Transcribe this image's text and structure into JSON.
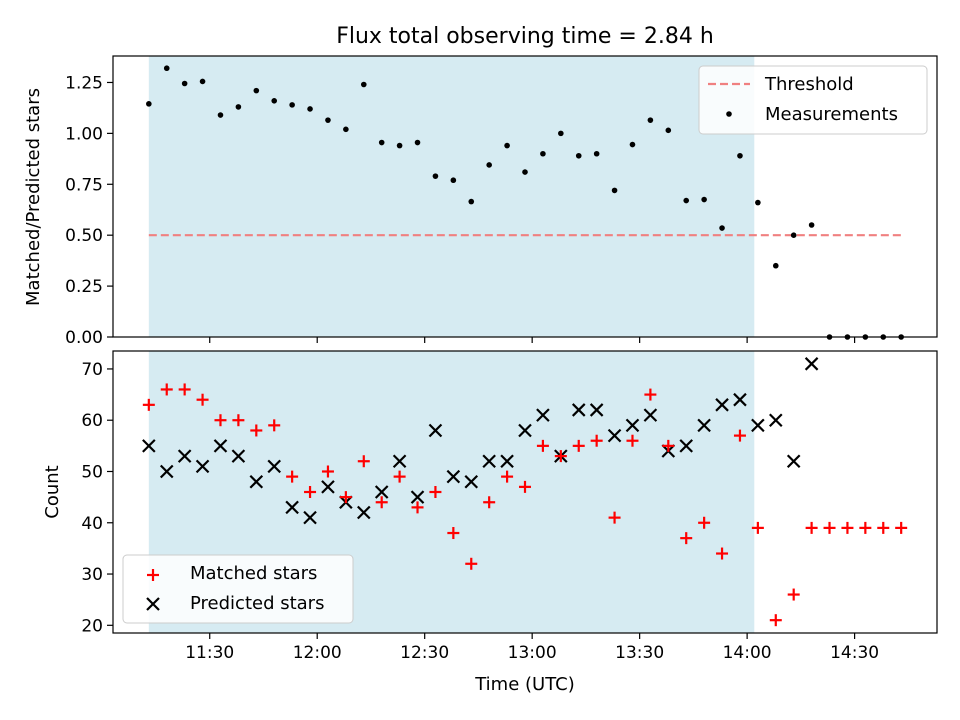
{
  "chart_data": [
    {
      "type": "scatter",
      "title": "Flux total observing time = 2.84 h",
      "xlabel": "",
      "ylabel": "Matched/Predicted stars",
      "ylim": [
        0,
        1.38
      ],
      "xlim_minutes": [
        663,
        893
      ],
      "yticks": [
        0,
        0.25,
        0.5,
        0.75,
        1.0,
        1.25
      ],
      "ytick_labels": [
        "0.00",
        "0.25",
        "0.50",
        "0.75",
        "1.00",
        "1.25"
      ],
      "shaded_span_minutes": [
        673,
        842
      ],
      "threshold": {
        "label": "Threshold",
        "value": 0.5,
        "x_range_minutes": [
          673,
          883
        ],
        "color": "#f08080"
      },
      "legend": [
        "Threshold",
        "Measurements"
      ],
      "legend_position": "upper right",
      "series": [
        {
          "name": "Measurements",
          "color": "#000000",
          "x_minutes": [
            673,
            678,
            683,
            688,
            693,
            698,
            703,
            708,
            713,
            718,
            723,
            728,
            733,
            738,
            743,
            748,
            753,
            758,
            763,
            768,
            773,
            778,
            783,
            788,
            793,
            798,
            803,
            808,
            813,
            818,
            823,
            828,
            833,
            838,
            843,
            848,
            853,
            858,
            863,
            868,
            873,
            878,
            883
          ],
          "values": [
            1.145,
            1.32,
            1.245,
            1.255,
            1.09,
            1.13,
            1.21,
            1.16,
            1.14,
            1.12,
            1.065,
            1.02,
            1.24,
            0.955,
            0.94,
            0.955,
            0.79,
            0.77,
            0.665,
            0.845,
            0.94,
            0.81,
            0.9,
            1.0,
            0.89,
            0.9,
            0.72,
            0.945,
            1.065,
            1.015,
            0.67,
            0.675,
            0.535,
            0.89,
            0.66,
            0.35,
            0.5,
            0.55,
            0.0,
            0.0,
            0.0,
            0.0,
            0.0
          ]
        }
      ]
    },
    {
      "type": "scatter",
      "title": "",
      "xlabel": "Time (UTC)",
      "ylabel": "Count",
      "ylim": [
        18.5,
        73.5
      ],
      "xlim_minutes": [
        663,
        893
      ],
      "yticks": [
        20,
        30,
        40,
        50,
        60,
        70
      ],
      "xtick_minutes": [
        690,
        720,
        750,
        780,
        810,
        840,
        870
      ],
      "xtick_labels": [
        "11:30",
        "12:00",
        "12:30",
        "13:00",
        "13:30",
        "14:00",
        "14:30"
      ],
      "shaded_span_minutes": [
        673,
        842
      ],
      "legend": [
        "Matched stars",
        "Predicted stars"
      ],
      "legend_position": "lower left",
      "series": [
        {
          "name": "Matched stars",
          "marker": "+",
          "color": "#ff0000",
          "x_minutes": [
            673,
            678,
            683,
            688,
            693,
            698,
            703,
            708,
            713,
            718,
            723,
            728,
            733,
            738,
            743,
            748,
            753,
            758,
            763,
            768,
            773,
            778,
            783,
            788,
            793,
            798,
            803,
            808,
            813,
            818,
            823,
            828,
            833,
            838,
            843,
            848,
            853,
            858,
            863,
            868,
            873,
            878,
            883
          ],
          "values": [
            63,
            66,
            66,
            64,
            60,
            60,
            58,
            59,
            49,
            46,
            50,
            45,
            52,
            44,
            49,
            43,
            46,
            38,
            32,
            44,
            49,
            47,
            55,
            53,
            55,
            56,
            41,
            56,
            65,
            55,
            37,
            40,
            34,
            57,
            39,
            21,
            26,
            39,
            39,
            39,
            39,
            39,
            39
          ]
        },
        {
          "name": "Predicted stars",
          "marker": "x",
          "color": "#000000",
          "x_minutes": [
            673,
            678,
            683,
            688,
            693,
            698,
            703,
            708,
            713,
            718,
            723,
            728,
            733,
            738,
            743,
            748,
            753,
            758,
            763,
            768,
            773,
            778,
            783,
            788,
            793,
            798,
            803,
            808,
            813,
            818,
            823,
            828,
            833,
            838,
            843,
            848,
            853,
            858
          ],
          "values": [
            55,
            50,
            53,
            51,
            55,
            53,
            48,
            51,
            43,
            41,
            47,
            44,
            42,
            46,
            52,
            45,
            58,
            49,
            48,
            52,
            52,
            58,
            61,
            53,
            62,
            62,
            57,
            59,
            61,
            54,
            55,
            59,
            63,
            64,
            59,
            60,
            52,
            71
          ]
        }
      ]
    }
  ]
}
